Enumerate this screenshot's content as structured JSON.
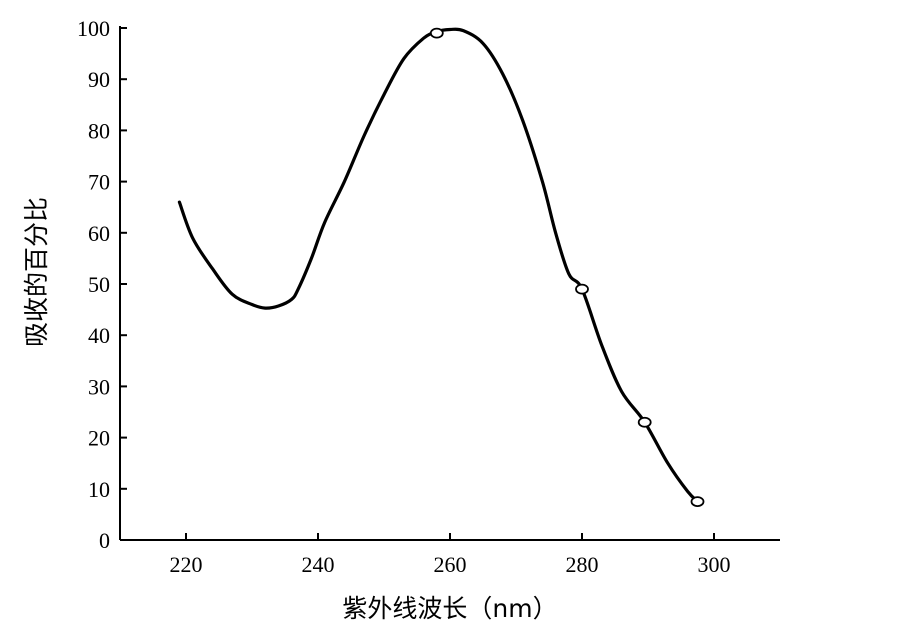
{
  "chart_data": {
    "type": "line",
    "title": "",
    "xlabel": "紫外线波长（nm）",
    "ylabel": "吸收的百分比",
    "xlim": [
      210,
      310
    ],
    "ylim": [
      0,
      100
    ],
    "x_ticks": [
      220,
      240,
      260,
      280,
      300
    ],
    "y_ticks": [
      0,
      10,
      20,
      30,
      40,
      50,
      60,
      70,
      80,
      90,
      100
    ],
    "grid": false,
    "series": [
      {
        "x": [
          219,
          221,
          224,
          227,
          230,
          232,
          234,
          236,
          237,
          239,
          241,
          244,
          247,
          250,
          253,
          256,
          258,
          260,
          262,
          265,
          268,
          271,
          274,
          276,
          278,
          280,
          283,
          286,
          289.5,
          293,
          296,
          297.5
        ],
        "y": [
          66,
          59,
          53,
          48,
          46,
          45.3,
          45.7,
          47,
          49,
          55,
          62,
          70,
          79,
          87,
          94,
          98,
          99.3,
          99.7,
          99.5,
          97,
          91,
          82,
          70,
          60,
          52,
          49,
          38,
          29,
          23,
          15,
          9.5,
          7.5
        ]
      }
    ],
    "markers": {
      "x": [
        258,
        280,
        289.5,
        297.5
      ],
      "y": [
        99,
        49,
        23,
        7.5
      ]
    }
  }
}
